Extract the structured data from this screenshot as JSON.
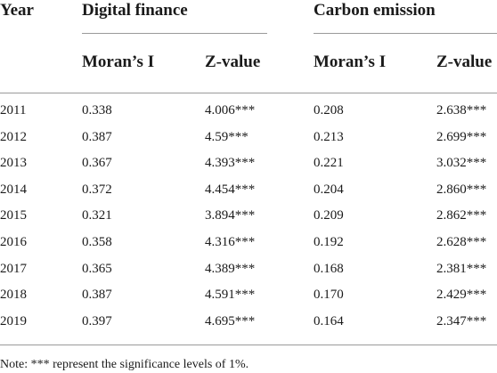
{
  "table": {
    "headers": {
      "year": "Year",
      "group1": "Digital finance",
      "group2": "Carbon emission",
      "moran1": "Moran’s I",
      "z1": "Z-value",
      "moran2": "Moran’s I",
      "z2": "Z-value"
    },
    "rows": [
      {
        "year": "2011",
        "df_moran": "0.338",
        "df_z": "4.006***",
        "ce_moran": "0.208",
        "ce_z": "2.638***"
      },
      {
        "year": "2012",
        "df_moran": "0.387",
        "df_z": "4.59***",
        "ce_moran": "0.213",
        "ce_z": "2.699***"
      },
      {
        "year": "2013",
        "df_moran": "0.367",
        "df_z": "4.393***",
        "ce_moran": "0.221",
        "ce_z": "3.032***"
      },
      {
        "year": "2014",
        "df_moran": "0.372",
        "df_z": "4.454***",
        "ce_moran": "0.204",
        "ce_z": "2.860***"
      },
      {
        "year": "2015",
        "df_moran": "0.321",
        "df_z": "3.894***",
        "ce_moran": "0.209",
        "ce_z": "2.862***"
      },
      {
        "year": "2016",
        "df_moran": "0.358",
        "df_z": "4.316***",
        "ce_moran": "0.192",
        "ce_z": "2.628***"
      },
      {
        "year": "2017",
        "df_moran": "0.365",
        "df_z": "4.389***",
        "ce_moran": "0.168",
        "ce_z": "2.381***"
      },
      {
        "year": "2018",
        "df_moran": "0.387",
        "df_z": "4.591***",
        "ce_moran": "0.170",
        "ce_z": "2.429***"
      },
      {
        "year": "2019",
        "df_moran": "0.397",
        "df_z": "4.695***",
        "ce_moran": "0.164",
        "ce_z": "2.347***"
      }
    ],
    "note": "Note: *** represent the significance levels of 1%."
  }
}
